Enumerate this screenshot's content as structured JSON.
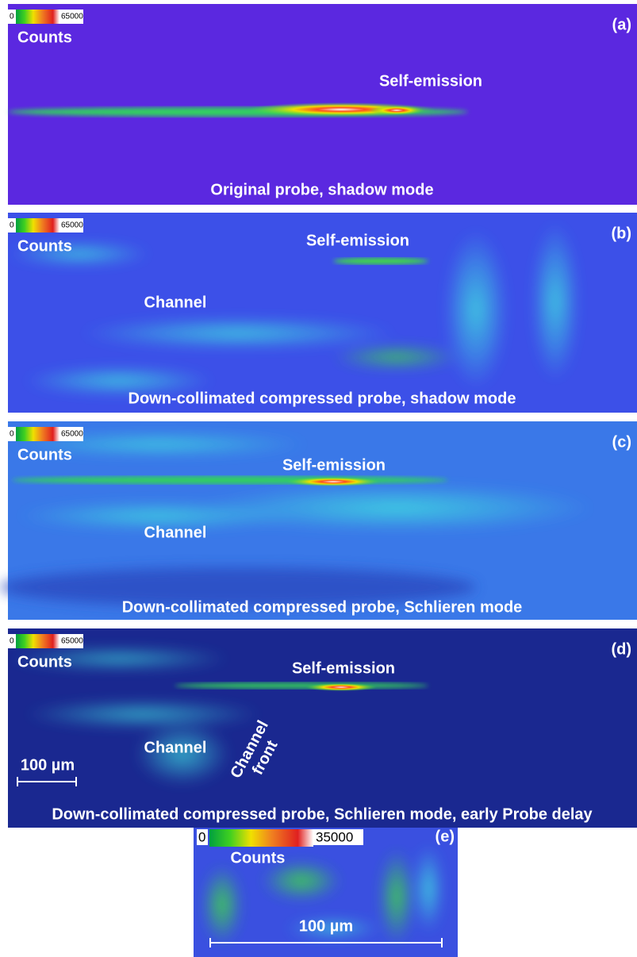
{
  "panels": [
    {
      "label": "(a)",
      "colorbar": {
        "min": 0,
        "max": 65000,
        "label": "Counts"
      },
      "annotations": [
        "Self-emission"
      ],
      "caption": "Original probe, shadow mode"
    },
    {
      "label": "(b)",
      "colorbar": {
        "min": 0,
        "max": 65000,
        "label": "Counts"
      },
      "annotations": [
        "Self-emission",
        "Channel"
      ],
      "caption": "Down-collimated compressed probe, shadow mode"
    },
    {
      "label": "(c)",
      "colorbar": {
        "min": 0,
        "max": 65000,
        "label": "Counts"
      },
      "annotations": [
        "Self-emission",
        "Channel"
      ],
      "caption": "Down-collimated compressed probe, Schlieren mode"
    },
    {
      "label": "(d)",
      "colorbar": {
        "min": 0,
        "max": 65000,
        "label": "Counts"
      },
      "annotations": [
        "Self-emission",
        "Channel"
      ],
      "channel_front": [
        "Channel",
        "front"
      ],
      "scale_bar": "100 µm",
      "caption": "Down-collimated compressed probe, Schlieren mode, early Probe delay"
    },
    {
      "label": "(e)",
      "colorbar": {
        "min": 0,
        "max": 35000,
        "label": "Counts"
      },
      "scale_bar": "100 µm"
    }
  ]
}
